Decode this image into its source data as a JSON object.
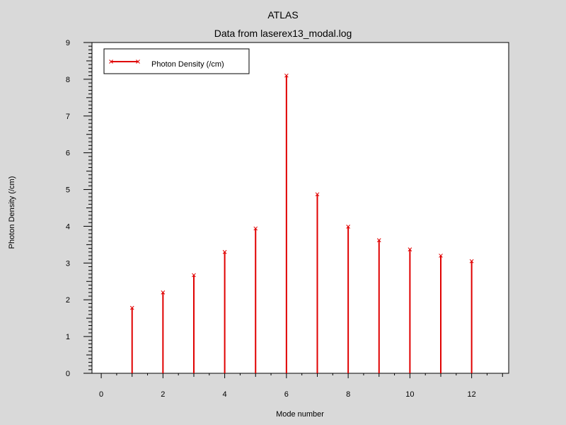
{
  "chart_data": {
    "type": "bar",
    "title": "ATLAS",
    "subtitle": "Data from laserex13_modal.log",
    "xlabel": "Mode number",
    "ylabel": "Photon Density (/cm)",
    "xlim": [
      -0.3,
      13.2
    ],
    "ylim": [
      0,
      9
    ],
    "x_ticks": [
      "0",
      "2",
      "4",
      "6",
      "8",
      "10",
      "12"
    ],
    "y_ticks": [
      "0",
      "1",
      "2",
      "3",
      "4",
      "5",
      "6",
      "7",
      "8",
      "9"
    ],
    "legend_position": "top-left",
    "series": [
      {
        "name": "Photon Density (/cm)",
        "color": "#e00000",
        "marker": "x",
        "x": [
          1,
          2,
          3,
          4,
          5,
          6,
          7,
          8,
          9,
          10,
          11,
          12
        ],
        "values": [
          1.78,
          2.2,
          2.67,
          3.3,
          3.94,
          8.1,
          4.87,
          3.99,
          3.62,
          3.37,
          3.2,
          3.05
        ]
      }
    ]
  }
}
